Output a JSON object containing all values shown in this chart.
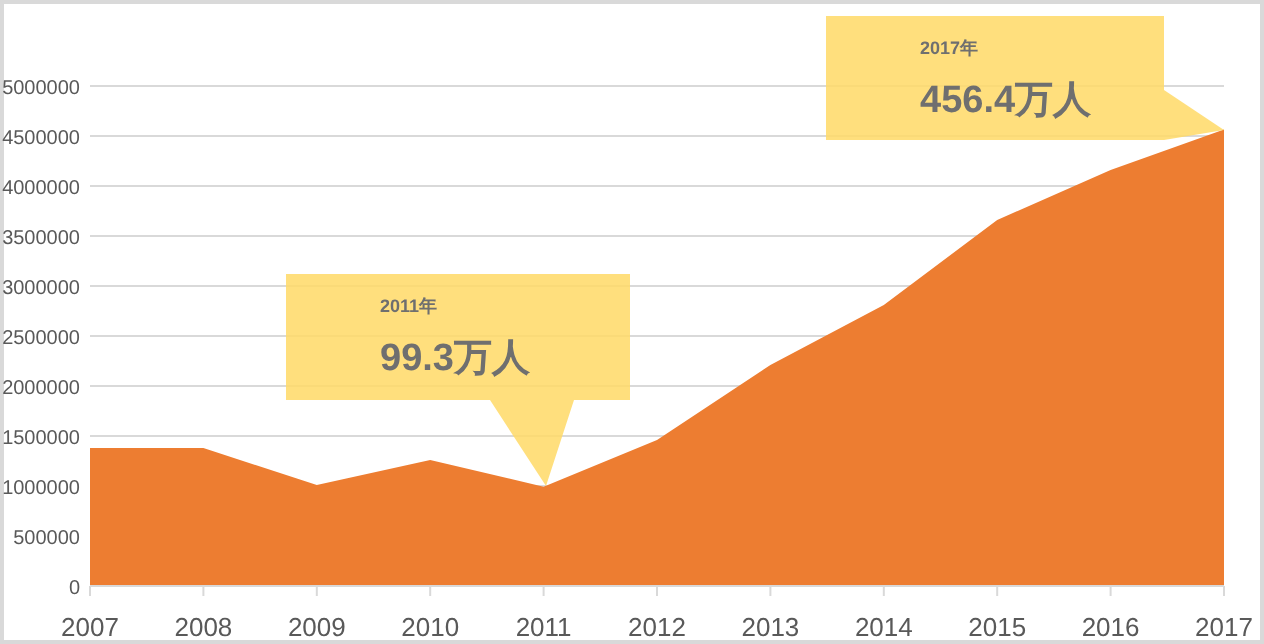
{
  "chart_data": {
    "type": "area",
    "categories": [
      "2007",
      "2008",
      "2009",
      "2010",
      "2011",
      "2012",
      "2013",
      "2014",
      "2015",
      "2016",
      "2017"
    ],
    "series": [
      {
        "color": "#ed7d31",
        "values": [
          1380000,
          1380000,
          1010000,
          1260000,
          993000,
          1460000,
          2210000,
          2810000,
          3660000,
          4160000,
          4564000
        ]
      }
    ],
    "ylim": [
      0,
      5000000
    ],
    "yticks": [
      0,
      500000,
      1000000,
      1500000,
      2000000,
      2500000,
      3000000,
      3500000,
      4000000,
      4500000,
      5000000
    ],
    "grid": "y",
    "annotations": [
      "2011年",
      "99.3万人",
      "2017年",
      "456.4万人"
    ]
  }
}
